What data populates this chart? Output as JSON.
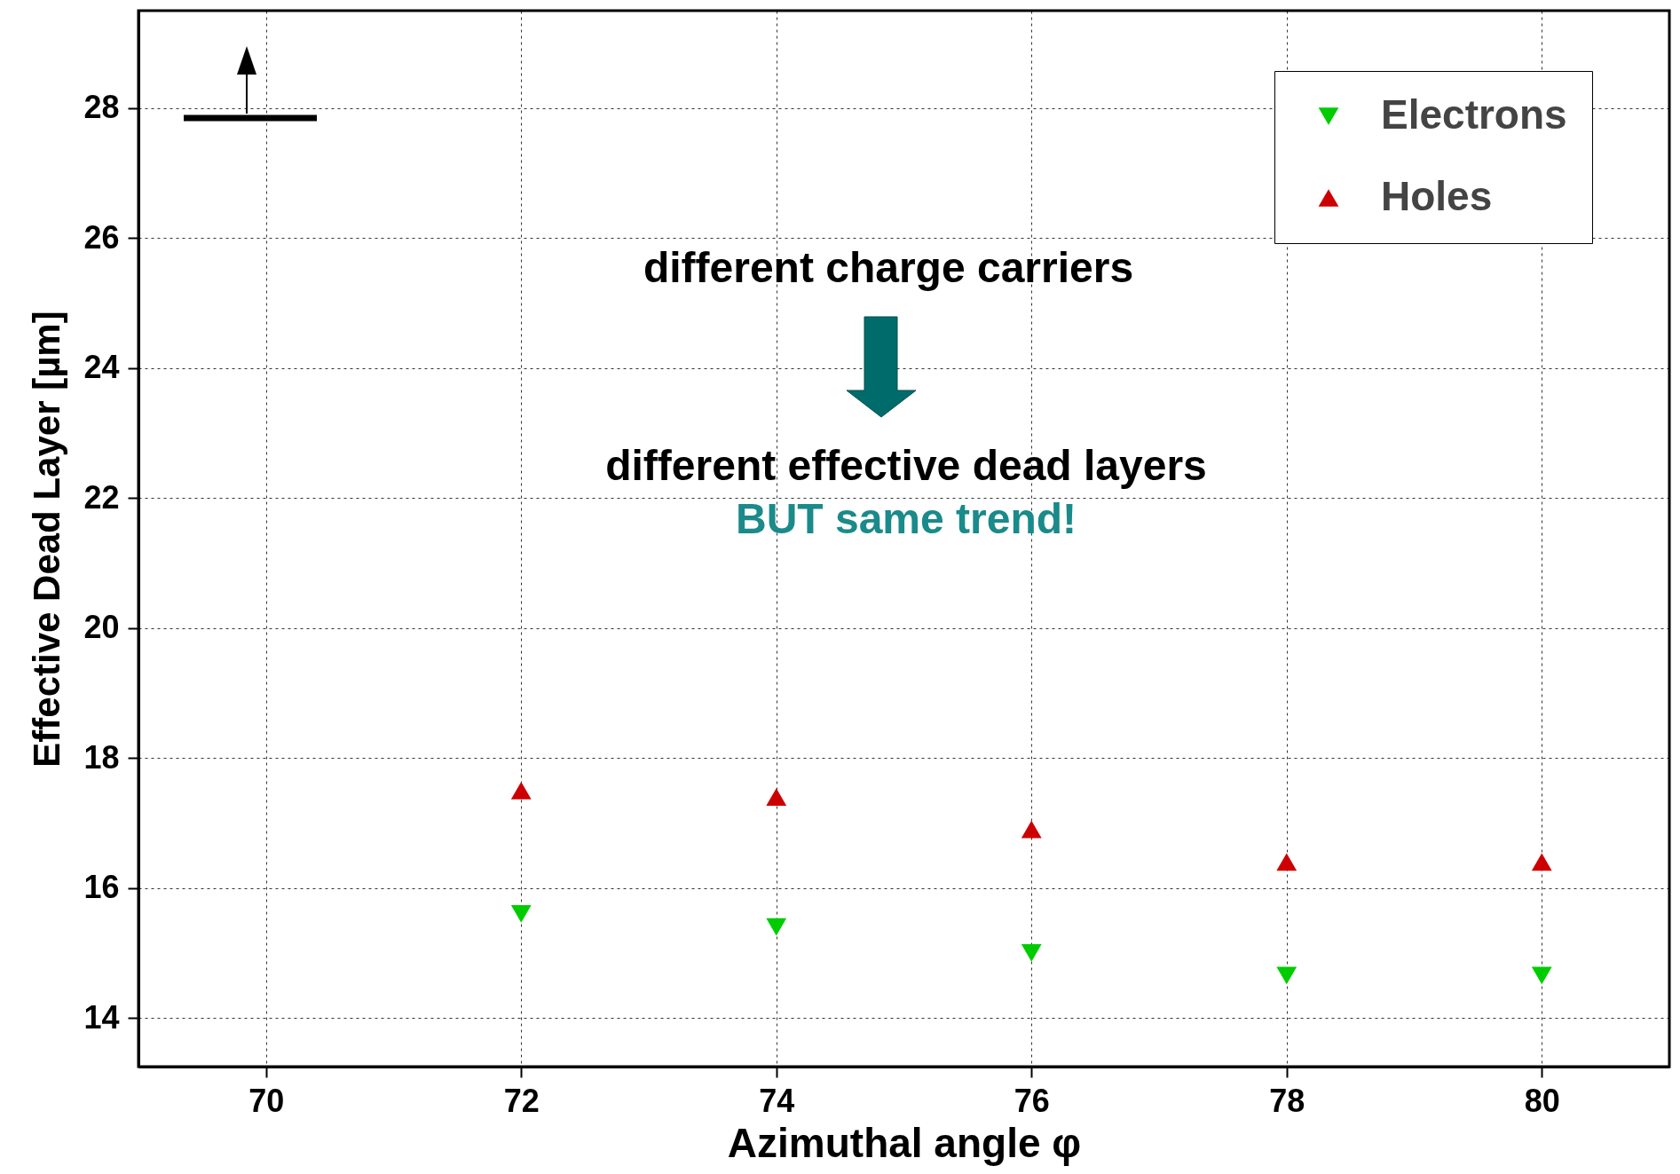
{
  "chart_data": {
    "type": "scatter",
    "xlabel": "Azimuthal angle φ",
    "ylabel": "Effective Dead Layer [µm]",
    "x": [
      72,
      74,
      76,
      78,
      80
    ],
    "series": [
      {
        "name": "Electrons",
        "color": "#00cc00",
        "marker": "triangle-down",
        "values": [
          15.6,
          15.4,
          15.0,
          14.65,
          14.65
        ]
      },
      {
        "name": "Holes",
        "color": "#cc0000",
        "marker": "triangle",
        "values": [
          17.5,
          17.4,
          16.9,
          16.4,
          16.4
        ]
      }
    ],
    "xlim": [
      69,
      81
    ],
    "xticks": [
      70,
      72,
      74,
      76,
      78,
      80
    ],
    "ylim": [
      13.25,
      29.5
    ],
    "yticks": [
      14,
      16,
      18,
      20,
      22,
      24,
      26,
      28
    ],
    "grid": true,
    "legend": "top right",
    "annotations": [
      "different charge carriers",
      "different effective dead layers",
      "BUT same trend!"
    ]
  }
}
